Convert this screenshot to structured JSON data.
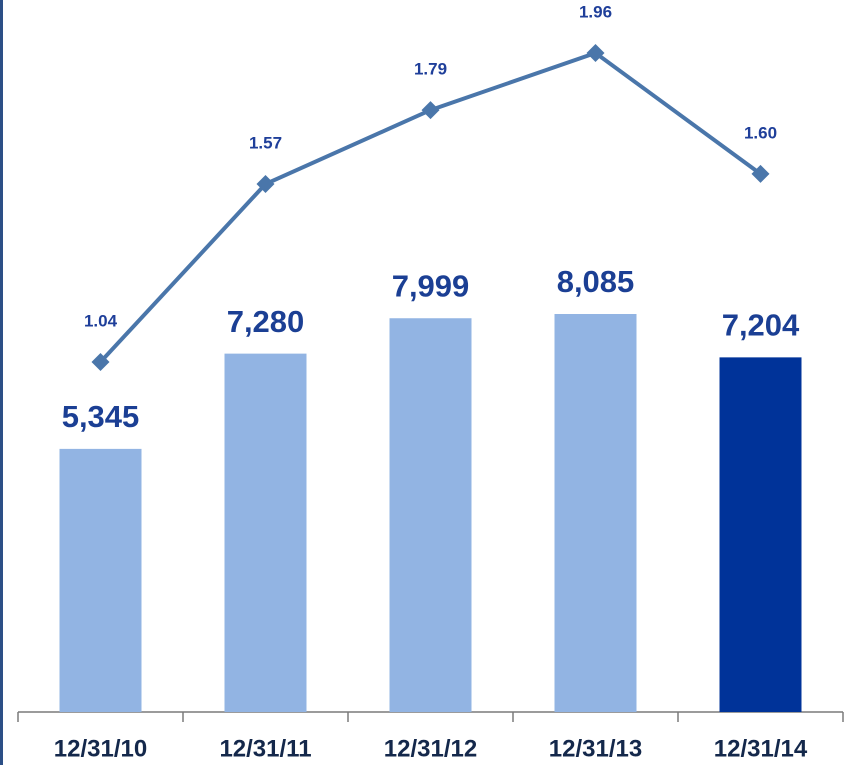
{
  "chart_data": {
    "type": "combo",
    "categories": [
      "12/31/10",
      "12/31/11",
      "12/31/12",
      "12/31/13",
      "12/31/14"
    ],
    "series": [
      {
        "type": "bar",
        "values": [
          5345,
          7280,
          7999,
          8085,
          7204
        ],
        "value_labels": [
          "5,345",
          "7,280",
          "7,999",
          "8,085",
          "7,204"
        ],
        "colors": [
          "#92b4e3",
          "#92b4e3",
          "#92b4e3",
          "#92b4e3",
          "#003399"
        ]
      },
      {
        "type": "line",
        "axis": "y2",
        "color": "#4a76aa",
        "values": [
          1.04,
          1.57,
          1.79,
          1.96,
          1.6
        ],
        "value_labels": [
          "1.04",
          "1.57",
          "1.79",
          "1.96",
          "1.60"
        ]
      }
    ]
  }
}
